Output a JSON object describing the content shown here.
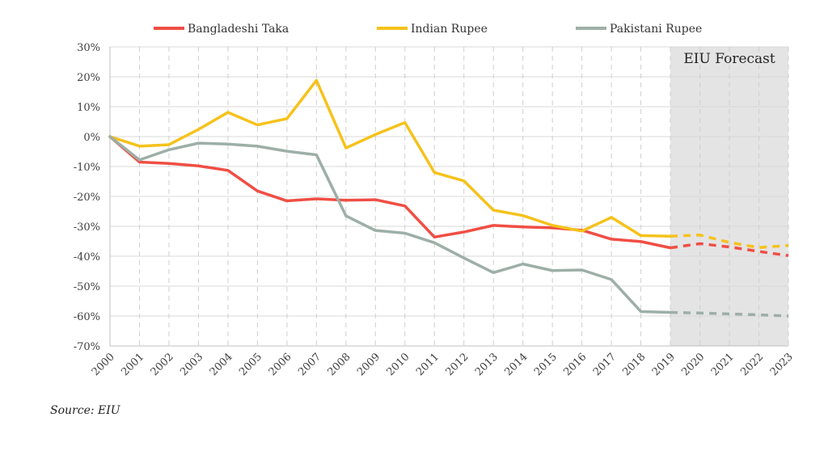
{
  "chart_data": {
    "type": "line",
    "x": [
      "2000",
      "2001",
      "2002",
      "2003",
      "2004",
      "2005",
      "2006",
      "2007",
      "2008",
      "2009",
      "2010",
      "2011",
      "2012",
      "2013",
      "2014",
      "2015",
      "2016",
      "2017",
      "2018",
      "2019",
      "2020",
      "2021",
      "2022",
      "2023"
    ],
    "ylim": [
      -70,
      30
    ],
    "yticks": [
      30,
      20,
      10,
      0,
      -10,
      -20,
      -30,
      -40,
      -50,
      -60,
      -70
    ],
    "ytick_labels": [
      "30%",
      "20%",
      "10%",
      "0%",
      "-10%",
      "-20%",
      "-30%",
      "-40%",
      "-50%",
      "-60%",
      "-70%"
    ],
    "legend_position": "top",
    "forecast": {
      "label": "EIU Forecast",
      "from": "2019",
      "to": "2023",
      "shade_color": "#e4e4e4"
    },
    "series": [
      {
        "name": "Bangladeshi Taka",
        "color": "#f04e44",
        "values": [
          0,
          -8.5,
          -9,
          -9.8,
          -11.3,
          -18.2,
          -21.5,
          -20.8,
          -21.3,
          -21.1,
          -23.2,
          -33.6,
          -31.9,
          -29.7,
          -30.2,
          -30.5,
          -31.3,
          -34.3,
          -35.1,
          -37.2,
          -35.8,
          -36.9,
          -38.4,
          -39.8
        ]
      },
      {
        "name": "Indian Rupee",
        "color": "#f6c21b",
        "values": [
          0,
          -3.2,
          -2.7,
          2.4,
          8.1,
          3.9,
          6,
          18.8,
          -3.8,
          0.7,
          4.7,
          -12,
          -14.8,
          -24.6,
          -26.4,
          -29.7,
          -31.6,
          -27,
          -33.1,
          -33.3,
          -32.9,
          -35.4,
          -37.1,
          -36.4
        ]
      },
      {
        "name": "Pakistani Rupee",
        "color": "#9dafa7",
        "values": [
          0,
          -7.8,
          -4.4,
          -2.2,
          -2.5,
          -3.2,
          -4.9,
          -6.1,
          -26.5,
          -31.4,
          -32.3,
          -35.5,
          -40.6,
          -45.5,
          -42.6,
          -44.8,
          -44.6,
          -47.8,
          -58.5,
          -58.8,
          -59,
          -59.3,
          -59.6,
          -60
        ]
      }
    ]
  },
  "source_note": "Source: EIU"
}
